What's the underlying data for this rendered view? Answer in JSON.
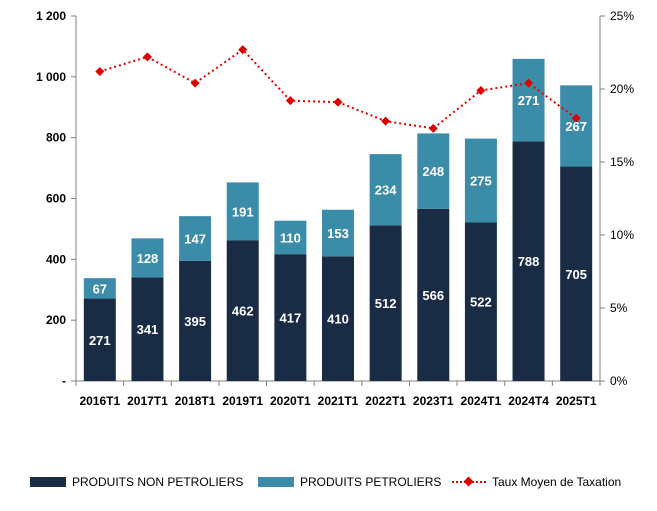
{
  "chart_data": {
    "type": "bar",
    "stacked": true,
    "categories": [
      "2016T1",
      "2017T1",
      "2018T1",
      "2019T1",
      "2020T1",
      "2021T1",
      "2022T1",
      "2023T1",
      "2024T1",
      "2024T4",
      "2025T1"
    ],
    "series": [
      {
        "name": "PRODUITS NON PETROLIERS",
        "values": [
          271,
          341,
          395,
          462,
          417,
          410,
          512,
          566,
          522,
          788,
          705
        ],
        "color": "#1a2b45"
      },
      {
        "name": "PRODUITS PETROLIERS",
        "values": [
          67,
          128,
          147,
          191,
          110,
          153,
          234,
          248,
          275,
          271,
          267
        ],
        "color": "#3a8ca8"
      }
    ],
    "line_series": {
      "name": "Taux Moyen de Taxation",
      "axis": "right",
      "values": [
        21.2,
        22.2,
        20.4,
        22.7,
        19.2,
        19.1,
        17.8,
        17.3,
        19.9,
        20.4,
        18.0
      ],
      "color": "#e00000"
    },
    "y_left": {
      "min": 0,
      "max": 1200,
      "ticks": [
        "-",
        "200",
        "400",
        "600",
        "800",
        "1 000",
        "1 200"
      ]
    },
    "y_right": {
      "min": 0,
      "max": 25,
      "ticks": [
        "0%",
        "5%",
        "10%",
        "15%",
        "20%",
        "25%"
      ]
    },
    "legend_position": "bottom",
    "grid": false
  }
}
